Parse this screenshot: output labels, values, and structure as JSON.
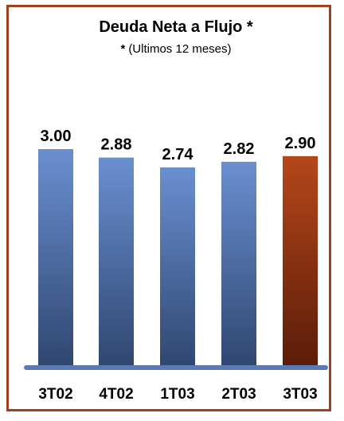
{
  "chart_data": {
    "type": "bar",
    "title": "Deuda Neta a Flujo *",
    "subtitle_marker": "*",
    "subtitle": "(Ultimos 12 meses)",
    "categories": [
      "3T02",
      "4T02",
      "1T03",
      "2T03",
      "3T03"
    ],
    "values": [
      3.0,
      2.88,
      2.74,
      2.82,
      2.9
    ],
    "value_labels": [
      "3.00",
      "2.88",
      "2.74",
      "2.82",
      "2.90"
    ],
    "highlight_index": 4,
    "colors": {
      "bar_top": "#6a8fd0",
      "bar_bottom": "#2f4670",
      "highlight_top": "#b5471a",
      "highlight_bottom": "#5a1c08",
      "baseline": "#5b7ab5",
      "frame": "#a0401e"
    }
  }
}
